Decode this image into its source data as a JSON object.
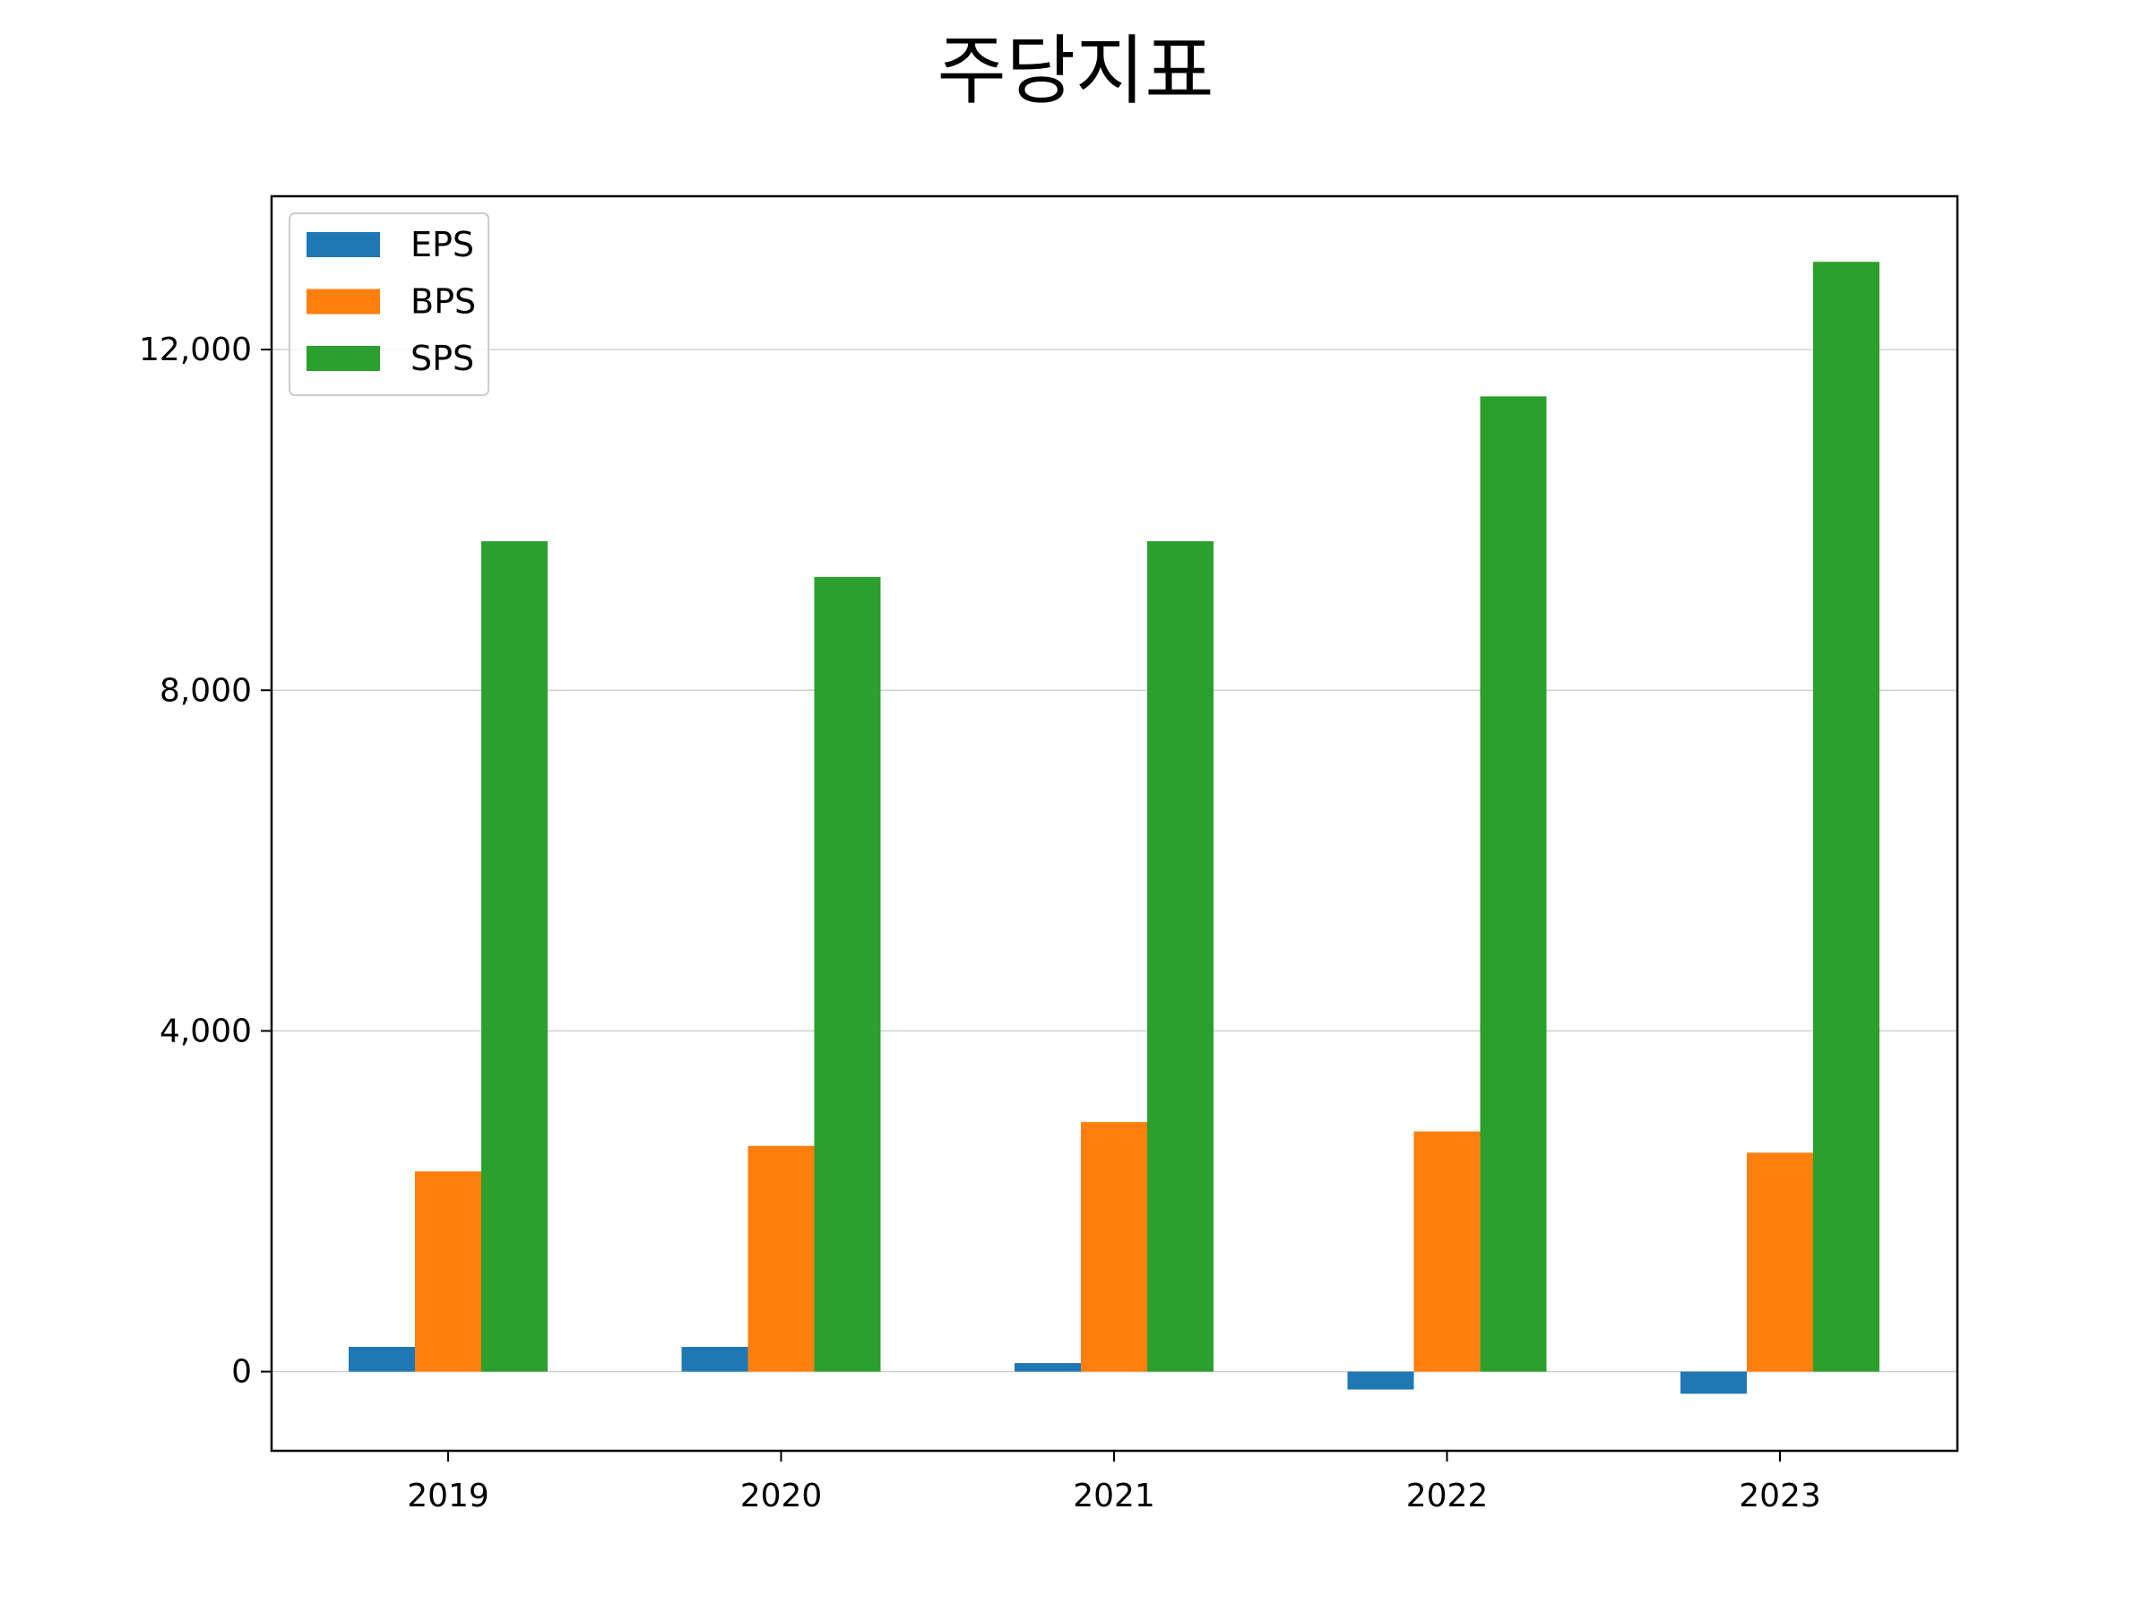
{
  "chart_data": {
    "type": "bar",
    "title": "주당지표",
    "categories": [
      "2019",
      "2020",
      "2021",
      "2022",
      "2023"
    ],
    "series": [
      {
        "name": "EPS",
        "color": "#1f77b4",
        "values": [
          290,
          290,
          100,
          -210,
          -260
        ]
      },
      {
        "name": "BPS",
        "color": "#ff7f0e",
        "values": [
          2350,
          2650,
          2930,
          2820,
          2570
        ]
      },
      {
        "name": "SPS",
        "color": "#2ca02c",
        "values": [
          9750,
          9330,
          9750,
          11450,
          13030
        ]
      }
    ],
    "ylim": [
      -930,
      13800
    ],
    "yticks": [
      0,
      4000,
      8000,
      12000
    ],
    "ytick_labels": [
      "0",
      "4,000",
      "8,000",
      "12,000"
    ],
    "grid": "y",
    "legend_position": "top-left",
    "xlabel": "",
    "ylabel": ""
  }
}
